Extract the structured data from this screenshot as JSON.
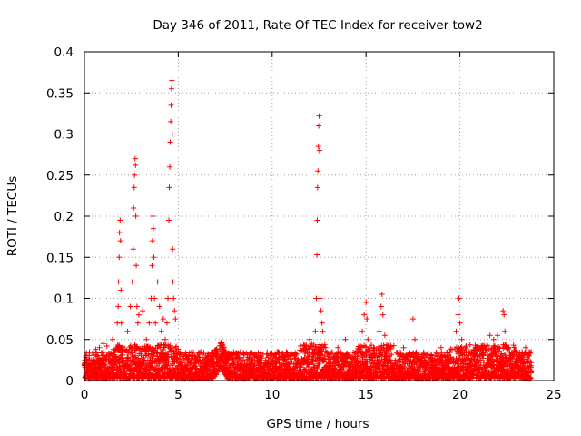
{
  "chart_data": {
    "type": "scatter",
    "title": "Day 346 of 2011, Rate Of TEC Index for receiver tow2",
    "xlabel": "GPS time / hours",
    "ylabel": "ROTI / TECUs",
    "xlim": [
      0,
      25
    ],
    "ylim": [
      0,
      0.4
    ],
    "x_ticks": [
      0,
      5,
      10,
      15,
      20,
      25
    ],
    "x_tick_labels": [
      "0",
      "5",
      "10",
      "15",
      "20",
      "25"
    ],
    "y_ticks": [
      0,
      0.05,
      0.1,
      0.15,
      0.2,
      0.25,
      0.3,
      0.35,
      0.4
    ],
    "y_tick_labels": [
      "0",
      "0.05",
      "0.1",
      "0.15",
      "0.2",
      "0.25",
      "0.3",
      "0.35",
      "0.4"
    ],
    "grid": true,
    "marker": "plus",
    "marker_color": "#ff0000",
    "baseline": {
      "description": "dense background ROTI values every ~2 min across the day",
      "x_range": [
        0,
        23.8
      ],
      "typical_range": [
        0.002,
        0.035
      ]
    },
    "series": [
      {
        "name": "ROTI (peaks)",
        "points": [
          [
            0.6,
            0.038
          ],
          [
            0.8,
            0.04
          ],
          [
            1.0,
            0.045
          ],
          [
            1.2,
            0.042
          ],
          [
            1.5,
            0.05
          ],
          [
            1.75,
            0.07
          ],
          [
            1.8,
            0.09
          ],
          [
            1.82,
            0.12
          ],
          [
            1.85,
            0.15
          ],
          [
            1.87,
            0.18
          ],
          [
            1.9,
            0.195
          ],
          [
            1.92,
            0.17
          ],
          [
            1.95,
            0.11
          ],
          [
            1.97,
            0.07
          ],
          [
            2.3,
            0.06
          ],
          [
            2.45,
            0.09
          ],
          [
            2.55,
            0.12
          ],
          [
            2.6,
            0.16
          ],
          [
            2.62,
            0.21
          ],
          [
            2.65,
            0.235
          ],
          [
            2.67,
            0.25
          ],
          [
            2.7,
            0.27
          ],
          [
            2.72,
            0.262
          ],
          [
            2.74,
            0.2
          ],
          [
            2.76,
            0.14
          ],
          [
            2.8,
            0.09
          ],
          [
            2.85,
            0.07
          ],
          [
            2.9,
            0.08
          ],
          [
            3.1,
            0.085
          ],
          [
            3.3,
            0.05
          ],
          [
            3.45,
            0.07
          ],
          [
            3.55,
            0.1
          ],
          [
            3.6,
            0.14
          ],
          [
            3.62,
            0.17
          ],
          [
            3.65,
            0.2
          ],
          [
            3.67,
            0.185
          ],
          [
            3.7,
            0.15
          ],
          [
            3.73,
            0.1
          ],
          [
            3.78,
            0.07
          ],
          [
            3.9,
            0.12
          ],
          [
            4.0,
            0.09
          ],
          [
            4.1,
            0.06
          ],
          [
            4.2,
            0.075
          ],
          [
            4.3,
            0.05
          ],
          [
            4.4,
            0.07
          ],
          [
            4.45,
            0.1
          ],
          [
            4.5,
            0.195
          ],
          [
            4.52,
            0.235
          ],
          [
            4.55,
            0.26
          ],
          [
            4.57,
            0.29
          ],
          [
            4.6,
            0.315
          ],
          [
            4.62,
            0.335
          ],
          [
            4.64,
            0.355
          ],
          [
            4.66,
            0.365
          ],
          [
            4.68,
            0.3
          ],
          [
            4.7,
            0.16
          ],
          [
            4.72,
            0.12
          ],
          [
            4.75,
            0.1
          ],
          [
            4.8,
            0.085
          ],
          [
            4.85,
            0.075
          ],
          [
            5.0,
            0.035
          ],
          [
            6.2,
            0.035
          ],
          [
            7.0,
            0.03
          ],
          [
            7.3,
            0.032
          ],
          [
            7.5,
            0.028
          ],
          [
            11.8,
            0.035
          ],
          [
            12.0,
            0.05
          ],
          [
            12.1,
            0.045
          ],
          [
            12.3,
            0.06
          ],
          [
            12.35,
            0.1
          ],
          [
            12.38,
            0.153
          ],
          [
            12.4,
            0.195
          ],
          [
            12.42,
            0.235
          ],
          [
            12.44,
            0.255
          ],
          [
            12.46,
            0.285
          ],
          [
            12.48,
            0.31
          ],
          [
            12.5,
            0.322
          ],
          [
            12.52,
            0.28
          ],
          [
            12.55,
            0.1
          ],
          [
            12.6,
            0.085
          ],
          [
            12.65,
            0.07
          ],
          [
            12.7,
            0.06
          ],
          [
            13.2,
            0.035
          ],
          [
            13.5,
            0.04
          ],
          [
            13.9,
            0.05
          ],
          [
            14.8,
            0.06
          ],
          [
            14.9,
            0.08
          ],
          [
            15.0,
            0.095
          ],
          [
            15.05,
            0.075
          ],
          [
            15.1,
            0.05
          ],
          [
            15.4,
            0.04
          ],
          [
            15.7,
            0.06
          ],
          [
            15.8,
            0.09
          ],
          [
            15.85,
            0.105
          ],
          [
            15.9,
            0.08
          ],
          [
            16.0,
            0.055
          ],
          [
            16.2,
            0.04
          ],
          [
            17.0,
            0.04
          ],
          [
            17.5,
            0.075
          ],
          [
            17.6,
            0.05
          ],
          [
            18.3,
            0.035
          ],
          [
            19.0,
            0.04
          ],
          [
            19.8,
            0.06
          ],
          [
            19.9,
            0.08
          ],
          [
            19.95,
            0.1
          ],
          [
            20.0,
            0.07
          ],
          [
            20.1,
            0.05
          ],
          [
            20.6,
            0.035
          ],
          [
            21.0,
            0.04
          ],
          [
            21.6,
            0.055
          ],
          [
            21.8,
            0.05
          ],
          [
            22.0,
            0.055
          ],
          [
            22.3,
            0.085
          ],
          [
            22.35,
            0.08
          ],
          [
            22.4,
            0.06
          ],
          [
            23.0,
            0.03
          ],
          [
            23.5,
            0.04
          ],
          [
            23.8,
            0.035
          ]
        ]
      }
    ]
  }
}
